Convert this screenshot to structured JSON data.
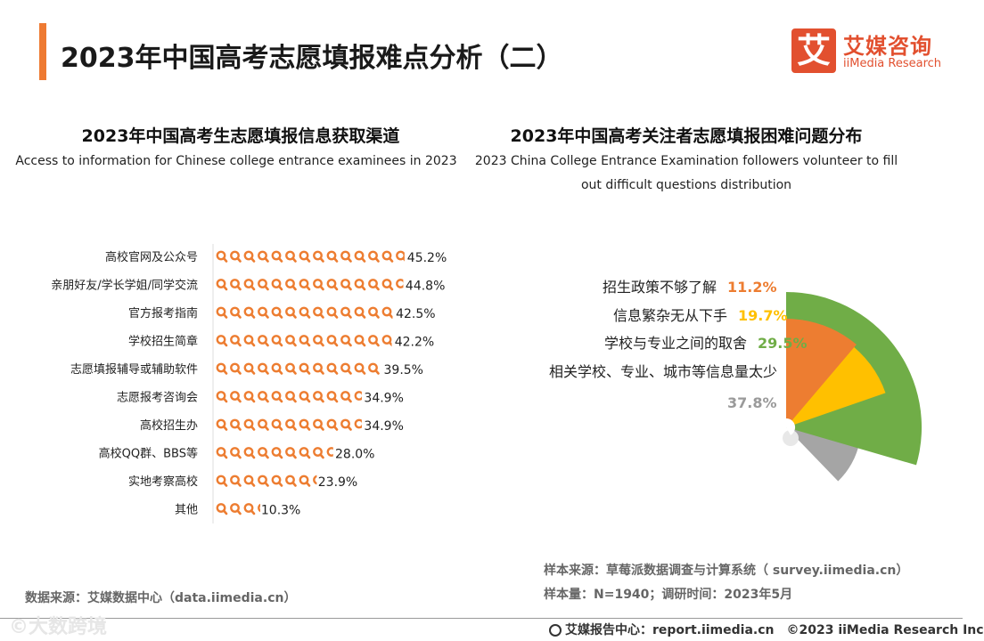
{
  "page": {
    "title": "2023年中国高考志愿填报难点分析（二）",
    "logo": {
      "mark": "艾",
      "name_cn": "艾媒咨询",
      "name_en": "iiMedia Research"
    },
    "data_source": "数据来源：艾媒数据中心（data.iimedia.cn）",
    "sample_source": "样本来源：草莓派数据调查与计算系统（ survey.iimedia.cn）",
    "sample_size": "样本量：N=1940；调研时间：2023年5月",
    "footer_report": "艾媒报告中心：report.iimedia.cn　©2023  iiMedia Research  Inc",
    "watermark": "©大数跨境"
  },
  "colors": {
    "accent": "#ee7a32",
    "orange": "#ed7d31",
    "yellow": "#ffc000",
    "green": "#70ad47",
    "gray": "#a5a5a5"
  },
  "icons": {
    "pictogram": "magnifier-icon",
    "footer": "globe-icon"
  },
  "chart_data": [
    {
      "type": "bar",
      "style": "pictograph",
      "title": "2023年中国高考生志愿填报信息获取渠道",
      "subtitle": "Access to information for Chinese college entrance examinees in 2023",
      "categories": [
        "高校官网及公众号",
        "亲朋好友/学长学姐/同学交流",
        "官方报考指南",
        "学校招生简章",
        "志愿填报辅导或辅助软件",
        "志愿报考咨询会",
        "高校招生办",
        "高校QQ群、BBS等",
        "实地考察高校",
        "其他"
      ],
      "values": [
        45.2,
        44.8,
        42.5,
        42.2,
        39.5,
        34.9,
        34.9,
        28.0,
        23.9,
        10.3
      ],
      "labels": [
        "45.2%",
        "44.8%",
        "42.5%",
        "42.2%",
        "39.5%",
        "34.9%",
        "34.9%",
        "28.0%",
        "23.9%",
        "10.3%"
      ]
    },
    {
      "type": "pie",
      "style": "nested-sectors",
      "title": "2023年中国高考关注者志愿填报困难问题分布",
      "subtitle": "2023 China College Entrance Examination followers volunteer to fill out difficult questions distribution",
      "categories": [
        "招生政策不够了解",
        "信息繁杂无从下手",
        "学校与专业之间的取舍",
        "相关学校、专业、城市等信息量太少"
      ],
      "values": [
        11.2,
        19.7,
        29.5,
        37.8
      ],
      "labels": [
        "11.2%",
        "19.7%",
        "29.5%",
        "37.8%"
      ],
      "colors": [
        "#ed7d31",
        "#ffc000",
        "#70ad47",
        "#a5a5a5"
      ]
    }
  ]
}
